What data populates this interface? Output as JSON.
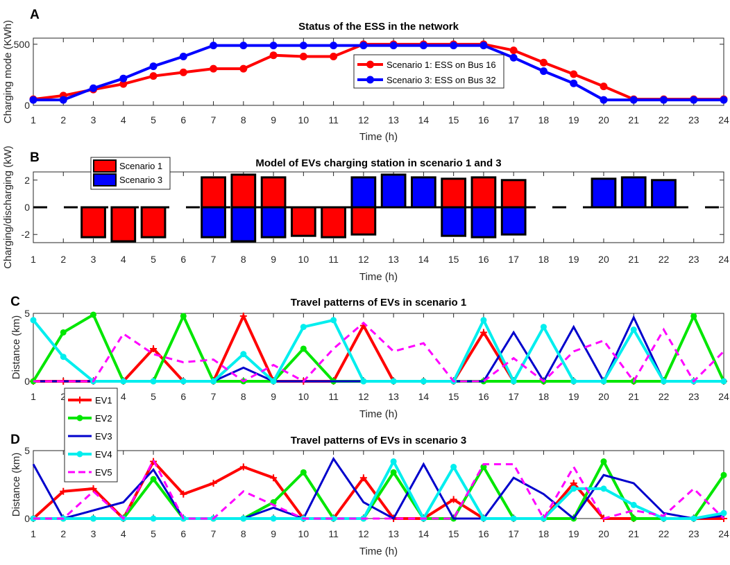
{
  "chart_data": [
    {
      "id": "A",
      "type": "line",
      "panel_letter": "A",
      "title": "Status of the ESS in the network",
      "xlabel": "Time (h)",
      "ylabel": "Charging mode (KWh)",
      "x": [
        1,
        2,
        3,
        4,
        5,
        6,
        7,
        8,
        9,
        10,
        11,
        12,
        13,
        14,
        15,
        16,
        17,
        18,
        19,
        20,
        21,
        22,
        23,
        24
      ],
      "xlim": [
        1,
        24
      ],
      "ylim": [
        0,
        550
      ],
      "yticks": [
        0,
        500
      ],
      "legend_position": "center-right",
      "series": [
        {
          "name": "Scenario 1: ESS on Bus 16",
          "color": "#ff0000",
          "marker": "dot",
          "values": [
            50,
            80,
            130,
            175,
            240,
            270,
            300,
            300,
            410,
            400,
            400,
            500,
            500,
            500,
            500,
            500,
            450,
            350,
            255,
            155,
            50,
            50,
            50,
            50
          ]
        },
        {
          "name": "Scenario 3: ESS on Bus 32",
          "color": "#0000ff",
          "marker": "dot",
          "values": [
            45,
            45,
            140,
            220,
            320,
            400,
            490,
            490,
            490,
            490,
            490,
            490,
            490,
            490,
            490,
            490,
            390,
            280,
            180,
            45,
            45,
            45,
            45,
            45
          ]
        }
      ]
    },
    {
      "id": "B",
      "type": "bar",
      "panel_letter": "B",
      "title": "Model of EVs charging station in scenario 1 and 3",
      "xlabel": "Time (h)",
      "ylabel": "Charging/discharging (kW)",
      "x": [
        1,
        2,
        3,
        4,
        5,
        6,
        7,
        8,
        9,
        10,
        11,
        12,
        13,
        14,
        15,
        16,
        17,
        18,
        19,
        20,
        21,
        22,
        23,
        24
      ],
      "xlim": [
        1,
        24
      ],
      "ylim": [
        -2.6,
        2.6
      ],
      "yticks": [
        -2,
        0,
        2
      ],
      "legend_position": "top-left",
      "series": [
        {
          "name": "Scenario 1",
          "color": "#ff0000",
          "values": [
            0,
            0,
            -2.2,
            -2.5,
            -2.2,
            0,
            2.2,
            2.4,
            2.2,
            -2.1,
            -2.2,
            -2.0,
            0,
            0,
            2.1,
            2.2,
            2.0,
            0,
            0,
            0,
            0,
            0,
            0,
            0
          ]
        },
        {
          "name": "Scenario 3",
          "color": "#0000ff",
          "values": [
            0,
            0,
            0,
            0,
            0,
            0,
            -2.2,
            -2.5,
            -2.2,
            0,
            0,
            2.2,
            2.4,
            2.2,
            -2.1,
            -2.2,
            -2.0,
            0,
            0,
            2.1,
            2.2,
            2.0,
            0,
            0
          ]
        }
      ]
    },
    {
      "id": "C",
      "type": "line",
      "panel_letter": "C",
      "title": "Travel patterns of EVs in scenario 1",
      "xlabel": "Time (h)",
      "ylabel": "Distance (km)",
      "x": [
        1,
        2,
        3,
        4,
        5,
        6,
        7,
        8,
        9,
        10,
        11,
        12,
        13,
        14,
        15,
        16,
        17,
        18,
        19,
        20,
        21,
        22,
        23,
        24
      ],
      "xlim": [
        1,
        24
      ],
      "ylim": [
        0,
        5
      ],
      "yticks": [
        0,
        5
      ],
      "series": [
        {
          "name": "EV1",
          "color": "#ff0000",
          "marker": "plus",
          "width": 4,
          "values": [
            0,
            0,
            0,
            0,
            2.4,
            0,
            0,
            4.8,
            0,
            0,
            0,
            4.1,
            0,
            0,
            0,
            3.6,
            0,
            0,
            0,
            0,
            0,
            0,
            0,
            0
          ]
        },
        {
          "name": "EV2",
          "color": "#00e600",
          "marker": "dot",
          "width": 4,
          "values": [
            0,
            3.6,
            4.9,
            0,
            0,
            4.8,
            0,
            0,
            0,
            2.4,
            0,
            0,
            0,
            0,
            0,
            0,
            0,
            0,
            0,
            0,
            0,
            0,
            4.8,
            0
          ]
        },
        {
          "name": "EV3",
          "color": "#0000cc",
          "marker": "none",
          "width": 3,
          "values": [
            0,
            0,
            0,
            0,
            0,
            0,
            0,
            1.0,
            0,
            0,
            0,
            0,
            0,
            0,
            0,
            0,
            3.6,
            0,
            4.0,
            0,
            4.7,
            0,
            0,
            0
          ]
        },
        {
          "name": "EV4",
          "color": "#00eeee",
          "marker": "dot",
          "width": 4,
          "values": [
            4.5,
            1.8,
            0,
            0,
            0,
            0,
            0,
            2.0,
            0,
            4.0,
            4.5,
            0,
            0,
            0,
            0,
            4.5,
            0,
            4.0,
            0,
            0,
            3.8,
            0,
            0,
            0
          ]
        },
        {
          "name": "EV5",
          "color": "#ff00ff",
          "marker": "none",
          "dash": "10 7",
          "width": 3,
          "values": [
            0,
            0,
            0,
            3.5,
            2.0,
            1.4,
            1.6,
            0,
            1.2,
            0,
            2.4,
            4.3,
            2.2,
            2.8,
            0,
            0,
            1.7,
            0,
            2.2,
            3.0,
            0,
            3.8,
            0,
            2.2
          ]
        }
      ]
    },
    {
      "id": "D",
      "type": "line",
      "panel_letter": "D",
      "title": "Travel patterns of EVs in scenario 3",
      "xlabel": "Time (h)",
      "ylabel": "Distance (km)",
      "x": [
        1,
        2,
        3,
        4,
        5,
        6,
        7,
        8,
        9,
        10,
        11,
        12,
        13,
        14,
        15,
        16,
        17,
        18,
        19,
        20,
        21,
        22,
        23,
        24
      ],
      "xlim": [
        1,
        24
      ],
      "ylim": [
        0,
        5
      ],
      "yticks": [
        0,
        5
      ],
      "legend_position": "left (overlapping panels C and D)",
      "series": [
        {
          "name": "EV1",
          "color": "#ff0000",
          "marker": "plus",
          "width": 4,
          "values": [
            0,
            2.0,
            2.2,
            0,
            4.2,
            1.8,
            2.6,
            3.8,
            3.0,
            0,
            0,
            3.0,
            0,
            0,
            1.4,
            0,
            0,
            0,
            2.6,
            0,
            0,
            0,
            0,
            0
          ]
        },
        {
          "name": "EV2",
          "color": "#00e600",
          "marker": "dot",
          "width": 4,
          "values": [
            0,
            0,
            0,
            0,
            2.9,
            0,
            0,
            0,
            1.2,
            3.4,
            0,
            0,
            3.4,
            0,
            0,
            3.8,
            0,
            0,
            0,
            4.2,
            0,
            0,
            0,
            3.2
          ]
        },
        {
          "name": "EV3",
          "color": "#0000cc",
          "marker": "none",
          "width": 3,
          "values": [
            4.0,
            0,
            0.6,
            1.2,
            3.6,
            0,
            0,
            0,
            0.8,
            0,
            4.4,
            1.2,
            0,
            4.0,
            0,
            0,
            3.0,
            1.8,
            0,
            3.2,
            2.6,
            0.4,
            0,
            0.2
          ]
        },
        {
          "name": "EV4",
          "color": "#00eeee",
          "marker": "dot",
          "width": 4,
          "values": [
            0,
            0,
            0,
            0,
            0,
            0,
            0,
            0,
            0,
            0,
            0,
            0,
            4.2,
            0,
            3.8,
            0,
            0,
            0,
            2.2,
            2.2,
            1.0,
            0,
            0,
            0.4
          ]
        },
        {
          "name": "EV5",
          "color": "#ff00ff",
          "marker": "none",
          "dash": "10 7",
          "width": 3,
          "values": [
            0,
            0,
            2.0,
            0,
            4.3,
            0,
            0,
            2.0,
            1.0,
            0,
            0,
            0,
            0,
            0,
            0,
            4.0,
            4.0,
            0,
            3.8,
            0,
            0.6,
            0.2,
            2.2,
            0
          ]
        }
      ]
    }
  ]
}
